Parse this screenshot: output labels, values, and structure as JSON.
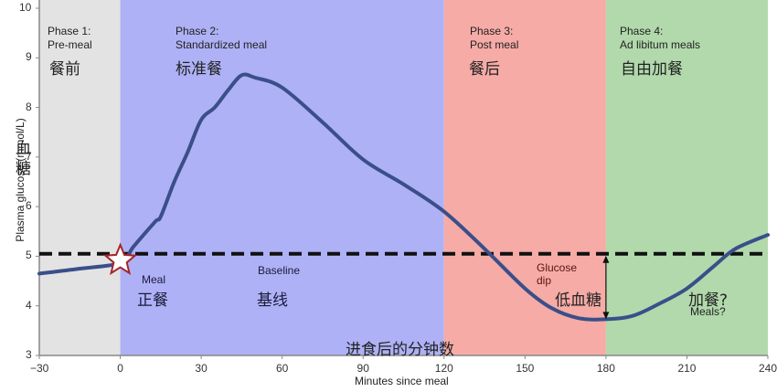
{
  "chart_data": {
    "type": "line",
    "title": "",
    "xlabel": "Minutes since meal",
    "xlabel_zh": "进食后的分钟数",
    "ylabel": "Plasma glucose (mmol/L)",
    "ylabel_zh": "血糖",
    "xlim": [
      -30,
      240
    ],
    "ylim": [
      3,
      10
    ],
    "x_ticks": [
      -30,
      0,
      30,
      60,
      90,
      120,
      150,
      180,
      210,
      240
    ],
    "y_ticks": [
      3,
      4,
      5,
      6,
      7,
      8,
      9,
      10
    ],
    "grid": false,
    "baseline": {
      "value": 5.05,
      "style": "dashed",
      "label": "Baseline",
      "label_zh": "基线"
    },
    "series": [
      {
        "name": "Plasma glucose",
        "color": "#3a4f8a",
        "x": [
          -30,
          -15,
          0,
          5,
          13,
          15,
          20,
          25,
          30,
          35,
          40,
          45,
          50,
          60,
          75,
          90,
          105,
          120,
          135,
          150,
          160,
          170,
          180,
          190,
          200,
          210,
          220,
          228,
          240
        ],
        "y": [
          4.65,
          4.75,
          4.87,
          5.2,
          5.7,
          5.8,
          6.5,
          7.1,
          7.75,
          8.0,
          8.35,
          8.65,
          8.6,
          8.4,
          7.7,
          6.95,
          6.45,
          5.9,
          5.15,
          4.35,
          3.95,
          3.75,
          3.73,
          3.8,
          4.05,
          4.35,
          4.8,
          5.15,
          5.43
        ]
      }
    ],
    "phases": [
      {
        "name": "Phase 1:",
        "desc": "Pre-meal",
        "zh": "餐前",
        "x_start": -30,
        "x_end": 0,
        "color": "#e3e3e3"
      },
      {
        "name": "Phase 2:",
        "desc": "Standardized meal",
        "zh": "标准餐",
        "x_start": 0,
        "x_end": 120,
        "color": "#aeb1f5"
      },
      {
        "name": "Phase 3:",
        "desc": "Post meal",
        "zh": "餐后",
        "x_start": 120,
        "x_end": 180,
        "color": "#f6aba6"
      },
      {
        "name": "Phase 4:",
        "desc": "Ad libitum meals",
        "zh": "自由加餐",
        "x_start": 180,
        "x_end": 240,
        "color": "#b1d9ac"
      }
    ],
    "annotations": [
      {
        "text": "Meal",
        "zh": "正餐",
        "x": 0,
        "y": 5.0,
        "marker": "star"
      },
      {
        "text": "Glucose dip",
        "zh": "低血糖",
        "x": 180,
        "from": 5.05,
        "to": 3.73,
        "marker": "double-arrow"
      },
      {
        "text": "Meals?",
        "zh": "加餐?",
        "x": 215,
        "y": 4.0
      }
    ]
  },
  "labels": {
    "p1_name": "Phase 1:",
    "p1_desc": "Pre-meal",
    "p1_zh": "餐前",
    "p2_name": "Phase 2:",
    "p2_desc": "Standardized meal",
    "p2_zh": "标准餐",
    "p3_name": "Phase 3:",
    "p3_desc": "Post meal",
    "p3_zh": "餐后",
    "p4_name": "Phase 4:",
    "p4_desc": "Ad libitum meals",
    "p4_zh": "自由加餐",
    "meal": "Meal",
    "meal_zh": "正餐",
    "baseline": "Baseline",
    "baseline_zh": "基线",
    "dip1": "Glucose",
    "dip2": "dip",
    "dip_zh": "低血糖",
    "meals_q": "Meals?",
    "meals_q_zh": "加餐?",
    "xlabel": "Minutes since meal",
    "xlabel_zh": "进食后的分钟数",
    "ylabel": "Plasma glucose (mmol/L)",
    "ylabel_zh1": "血",
    "ylabel_zh2": "糖"
  }
}
